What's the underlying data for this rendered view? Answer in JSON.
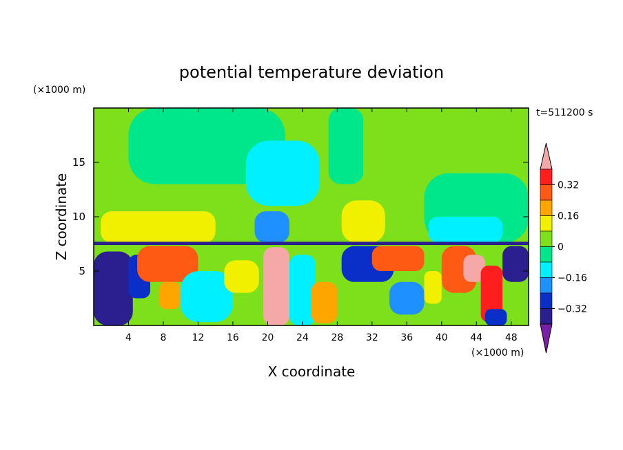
{
  "chart_data": {
    "type": "heatmap",
    "title": "potential temperature deviation",
    "xlabel": "X coordinate",
    "ylabel": "Z coordinate",
    "x_unit": "(×1000 m)",
    "y_unit": "(×1000 m)",
    "time_label": "t=511200 s",
    "xlim": [
      0,
      50
    ],
    "ylim": [
      0,
      20
    ],
    "x_ticks": [
      4,
      8,
      12,
      16,
      20,
      24,
      28,
      32,
      36,
      40,
      44,
      48
    ],
    "y_ticks": [
      5,
      10,
      15
    ],
    "colorbar": {
      "levels": [
        -0.4,
        -0.32,
        -0.24,
        -0.16,
        -0.08,
        0,
        0.08,
        0.16,
        0.24,
        0.32,
        0.4
      ],
      "tick_labels": [
        "0.32",
        "0.16",
        "0",
        "−0.16",
        "−0.32"
      ],
      "tick_values": [
        0.32,
        0.16,
        0,
        -0.16,
        -0.32
      ],
      "colors": [
        "#7a1fa8",
        "#2b1e8f",
        "#0a2fc8",
        "#1e90ff",
        "#00f0ff",
        "#00e68a",
        "#7de01a",
        "#f0f000",
        "#ffa500",
        "#ff5a14",
        "#ff1e1e",
        "#f5a8a8"
      ]
    },
    "regions": [
      {
        "x": [
          0,
          50
        ],
        "z": [
          7.6,
          20
        ],
        "value": 0.04
      },
      {
        "x": [
          4,
          22
        ],
        "z": [
          13,
          20
        ],
        "value": -0.02
      },
      {
        "x": [
          17.5,
          26
        ],
        "z": [
          11,
          17
        ],
        "value": -0.1
      },
      {
        "x": [
          18.5,
          22.5
        ],
        "z": [
          7.6,
          10.5
        ],
        "value": -0.22
      },
      {
        "x": [
          27,
          31
        ],
        "z": [
          13,
          20
        ],
        "value": -0.02
      },
      {
        "x": [
          38,
          50
        ],
        "z": [
          7.6,
          14
        ],
        "value": -0.02
      },
      {
        "x": [
          38.5,
          47
        ],
        "z": [
          7.6,
          10
        ],
        "value": -0.1
      },
      {
        "x": [
          0.8,
          14
        ],
        "z": [
          7.6,
          10.5
        ],
        "value": 0.12
      },
      {
        "x": [
          28.5,
          33.5
        ],
        "z": [
          7.6,
          11.5
        ],
        "value": 0.14
      },
      {
        "x": [
          0,
          50
        ],
        "z": [
          7.3,
          7.7
        ],
        "value": -0.36
      },
      {
        "x": [
          0,
          50
        ],
        "z": [
          0,
          7.4
        ],
        "value": 0.04
      },
      {
        "x": [
          0,
          4.5
        ],
        "z": [
          0,
          6.8
        ],
        "value": -0.38
      },
      {
        "x": [
          4,
          6.5
        ],
        "z": [
          2.5,
          6.5
        ],
        "value": -0.26
      },
      {
        "x": [
          5,
          12
        ],
        "z": [
          4,
          7.3
        ],
        "value": 0.3
      },
      {
        "x": [
          7.5,
          10
        ],
        "z": [
          1.5,
          4
        ],
        "value": 0.22
      },
      {
        "x": [
          10,
          16
        ],
        "z": [
          0.3,
          5
        ],
        "value": -0.1
      },
      {
        "x": [
          15,
          19
        ],
        "z": [
          3,
          6
        ],
        "value": 0.08
      },
      {
        "x": [
          19.5,
          22.5
        ],
        "z": [
          0,
          7.2
        ],
        "value": 0.4
      },
      {
        "x": [
          22.5,
          25.5
        ],
        "z": [
          0,
          6.5
        ],
        "value": -0.12
      },
      {
        "x": [
          25,
          28
        ],
        "z": [
          0.2,
          4
        ],
        "value": 0.22
      },
      {
        "x": [
          28.5,
          34.5
        ],
        "z": [
          4,
          7.3
        ],
        "value": -0.3
      },
      {
        "x": [
          32,
          38
        ],
        "z": [
          5,
          7.3
        ],
        "value": 0.3
      },
      {
        "x": [
          34,
          38
        ],
        "z": [
          1,
          4
        ],
        "value": -0.18
      },
      {
        "x": [
          38,
          40
        ],
        "z": [
          2,
          5
        ],
        "value": 0.12
      },
      {
        "x": [
          40,
          44
        ],
        "z": [
          3,
          7.3
        ],
        "value": 0.3
      },
      {
        "x": [
          42.5,
          45
        ],
        "z": [
          4,
          6.5
        ],
        "value": 0.4
      },
      {
        "x": [
          44.5,
          47
        ],
        "z": [
          0.3,
          5.5
        ],
        "value": 0.38
      },
      {
        "x": [
          47,
          50
        ],
        "z": [
          4,
          7.3
        ],
        "value": -0.34
      },
      {
        "x": [
          45,
          47.5
        ],
        "z": [
          0,
          1.5
        ],
        "value": -0.3
      }
    ]
  }
}
